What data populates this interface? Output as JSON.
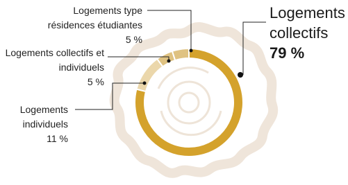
{
  "chart_data": {
    "type": "donut",
    "categories": [
      "Logements collectifs",
      "Logements individuels",
      "Logements collectifs et individuels",
      "Logements type résidences étudiantes"
    ],
    "values": [
      79,
      11,
      5,
      5
    ],
    "value_labels": [
      "79 %",
      "11 %",
      "5 %",
      "5 %"
    ],
    "colors": [
      "#d4a22c",
      "#ebd7ab",
      "#dfc281",
      "#dfc281"
    ]
  }
}
